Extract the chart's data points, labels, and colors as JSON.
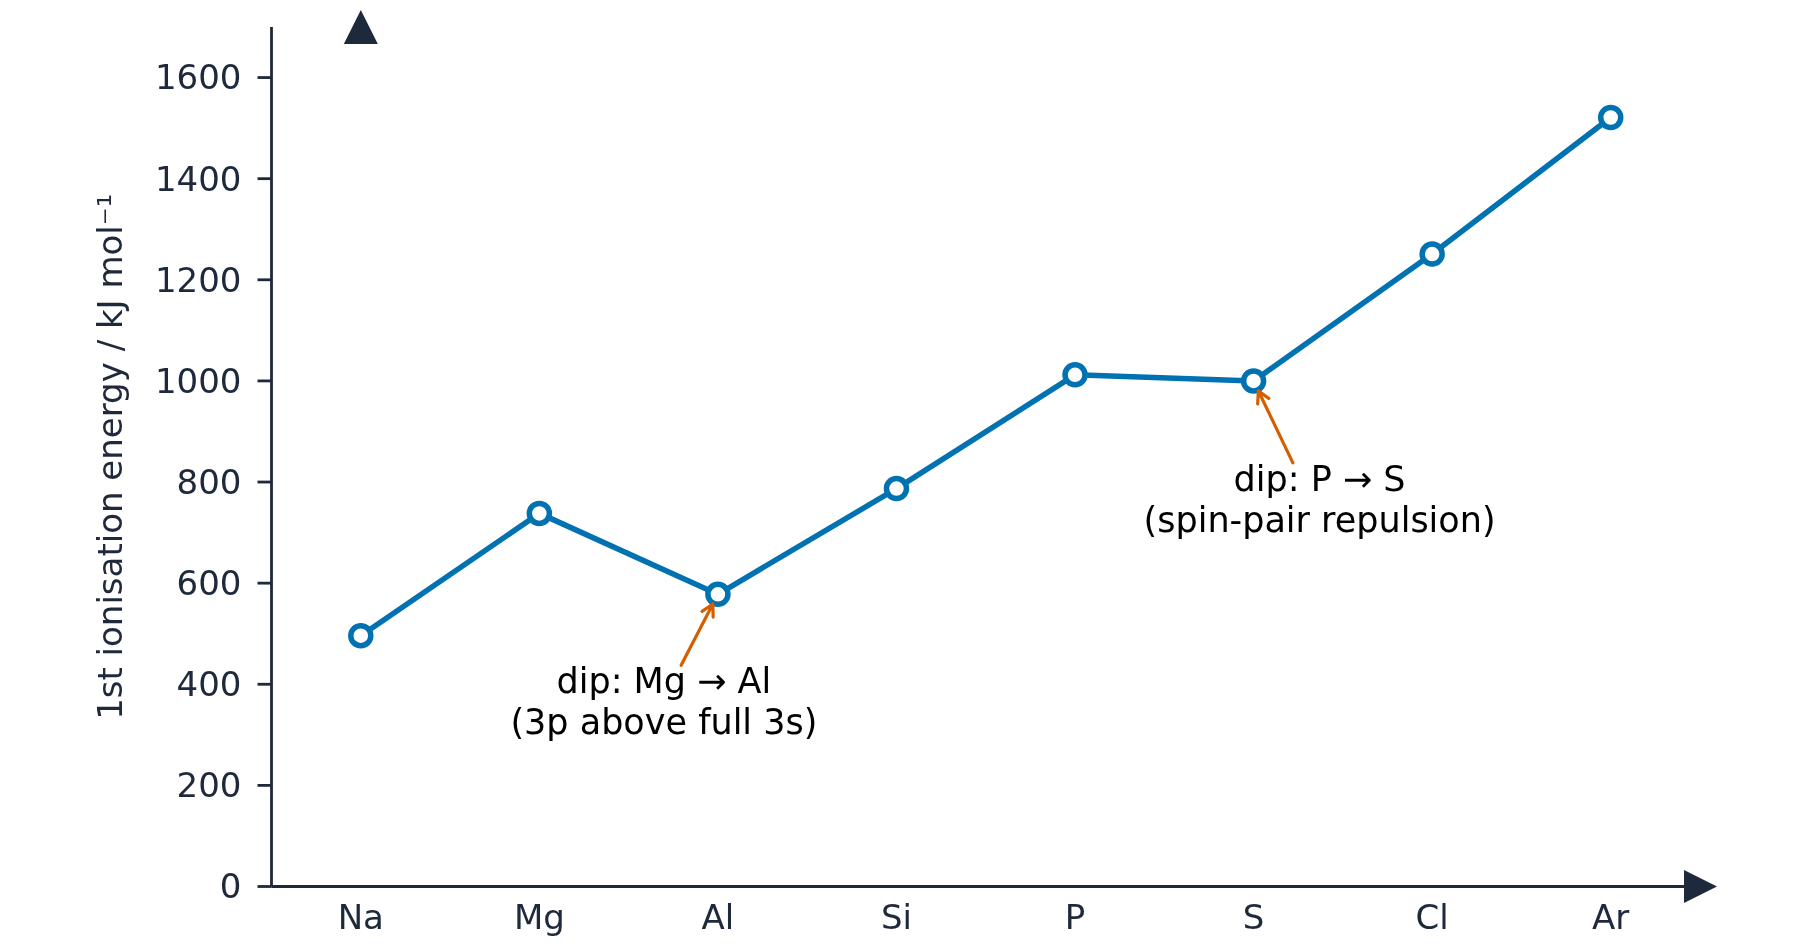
{
  "chart_data": {
    "type": "line",
    "ylabel": "1st ionisation energy / kJ mol⁻¹",
    "categories": [
      "Na",
      "Mg",
      "Al",
      "Si",
      "P",
      "S",
      "Cl",
      "Ar"
    ],
    "series": [
      {
        "color": "#0072b2",
        "values": [
          496,
          738,
          578,
          787,
          1012,
          1000,
          1251,
          1521
        ]
      }
    ],
    "ylim": [
      0,
      1700
    ],
    "yticks": [
      0,
      200,
      400,
      600,
      800,
      1000,
      1200,
      1400,
      1600
    ],
    "marker": "circle",
    "line_style": "solid",
    "annotations": [
      {
        "text": "dip: Mg → Al\n(3p above full 3s)",
        "x": "Al",
        "y": 578
      },
      {
        "text": "dip: P → S\n(spin-pair repulsion)",
        "x": "S",
        "y": 1000
      }
    ]
  }
}
